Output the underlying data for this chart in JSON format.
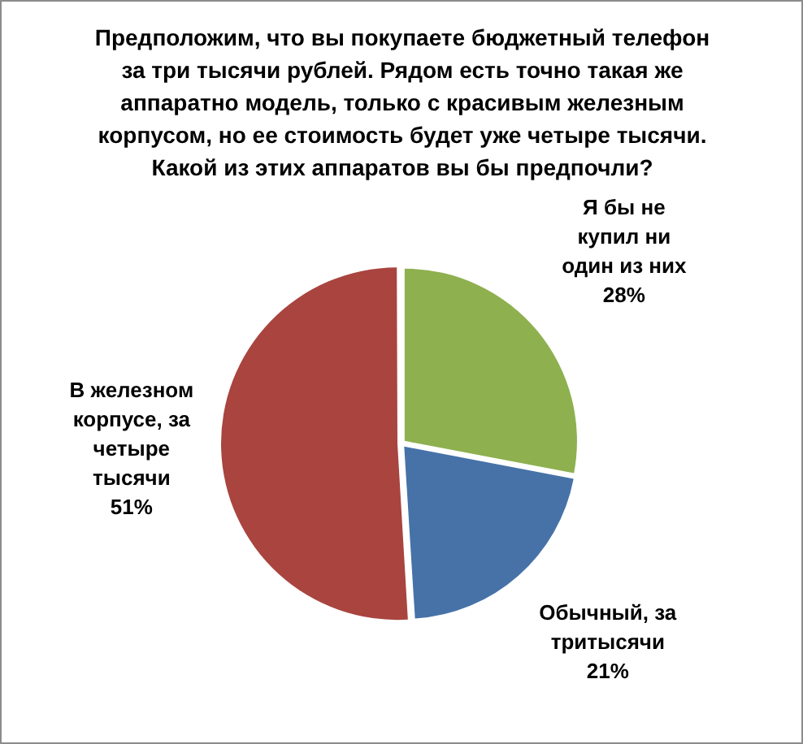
{
  "chart_data": {
    "type": "pie",
    "title": "Предположим, что вы покупаете бюджетный телефон за три тысячи рублей. Рядом есть точно такая же аппаратно модель, только с красивым железным корпусом, но ее стоимость будет уже четыре тысячи. Какой из этих аппаратов вы бы предпочли?",
    "categories": [
      "Я бы не купил ни один из них",
      "Обычный, за тритысячи",
      "В железном корпусе, за четыре тысячи"
    ],
    "values": [
      28,
      21,
      51
    ],
    "colors": [
      "#8eb04f",
      "#4672a8",
      "#a9443f"
    ],
    "value_labels": [
      "28%",
      "21%",
      "51%"
    ],
    "legend": false
  }
}
